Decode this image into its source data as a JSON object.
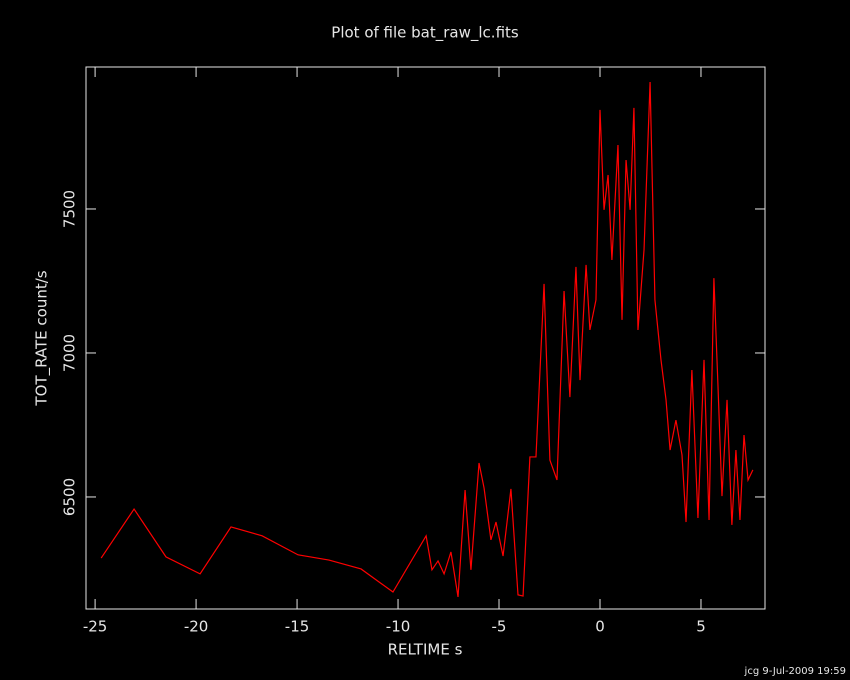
{
  "chart_data": {
    "type": "line",
    "title": "Plot of file bat_raw_lc.fits",
    "x_label": "RELTIME  s",
    "y_label": "TOT_RATE  count/s",
    "footer": "jcg  9-Jul-2009 19:59",
    "x": [
      -24.7,
      -23.07,
      -21.49,
      -19.8,
      -18.27,
      -16.73,
      -14.95,
      -13.42,
      -11.83,
      -10.25,
      -8.61,
      -8.32,
      -8.02,
      -7.72,
      -7.38,
      -7.03,
      -6.68,
      -6.39,
      -5.99,
      -5.74,
      -5.4,
      -5.15,
      -4.8,
      -4.41,
      -4.06,
      -3.81,
      -3.47,
      -3.17,
      -2.77,
      -2.48,
      -2.13,
      -1.78,
      -1.49,
      -1.19,
      -0.99,
      -0.69,
      -0.5,
      -0.2,
      0.0,
      0.2,
      0.4,
      0.59,
      0.89,
      1.09,
      1.29,
      1.49,
      1.68,
      1.88,
      2.18,
      2.48,
      2.72,
      3.02,
      3.27,
      3.47,
      3.76,
      4.06,
      4.26,
      4.55,
      4.85,
      5.15,
      5.4,
      5.64,
      5.84,
      6.04,
      6.29,
      6.53,
      6.73,
      6.93,
      7.13,
      7.33,
      7.57
    ],
    "series": [
      {
        "color": "#ff0000",
        "values": [
          6288,
          6458,
          6292,
          6233,
          6396,
          6365,
          6299,
          6281,
          6250,
          6170,
          6365,
          6247,
          6278,
          6233,
          6309,
          6153,
          6524,
          6247,
          6618,
          6531,
          6351,
          6413,
          6295,
          6528,
          6160,
          6156,
          6639,
          6639,
          7240,
          6628,
          6559,
          7215,
          6847,
          7299,
          6906,
          7306,
          7080,
          7184,
          7844,
          7497,
          7618,
          7323,
          7722,
          7115,
          7670,
          7497,
          7851,
          7080,
          7358,
          7941,
          7184,
          6976,
          6837,
          6663,
          6767,
          6646,
          6413,
          6941,
          6427,
          6976,
          6420,
          7260,
          6889,
          6503,
          6837,
          6403,
          6663,
          6420,
          6715,
          6559,
          6594
        ]
      }
    ],
    "xlim": [
      -25.45,
      8.17
    ],
    "xticks": [
      -25,
      -20,
      -15,
      -10,
      -5,
      0,
      5
    ],
    "ylim": [
      6111,
      7993
    ],
    "yticks": [
      6500,
      7000,
      7500
    ]
  }
}
